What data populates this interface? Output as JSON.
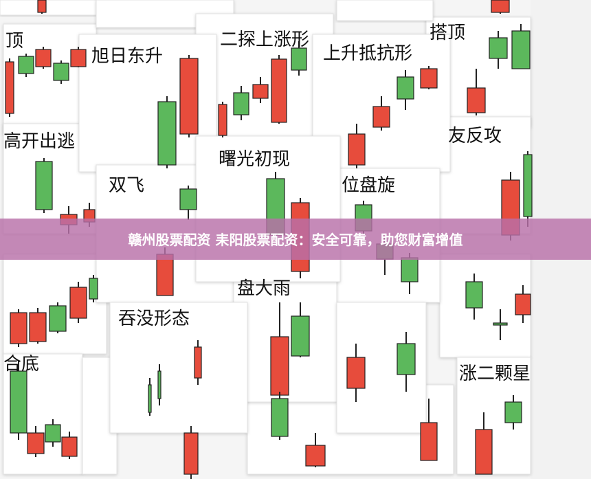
{
  "cards": [
    "顶",
    "旭日东升",
    "二探上涨形",
    "上升抵抗形",
    "搭顶",
    "高开出逃",
    "友反攻",
    "双飞",
    "曙光初现",
    "位盘旋",
    "盘大雨",
    "吞没形态",
    "合底",
    "涨二颗星"
  ],
  "banner": {
    "text": "赣州股票配资 耒阳股票配资：安全可靠，助您财富增值"
  }
}
